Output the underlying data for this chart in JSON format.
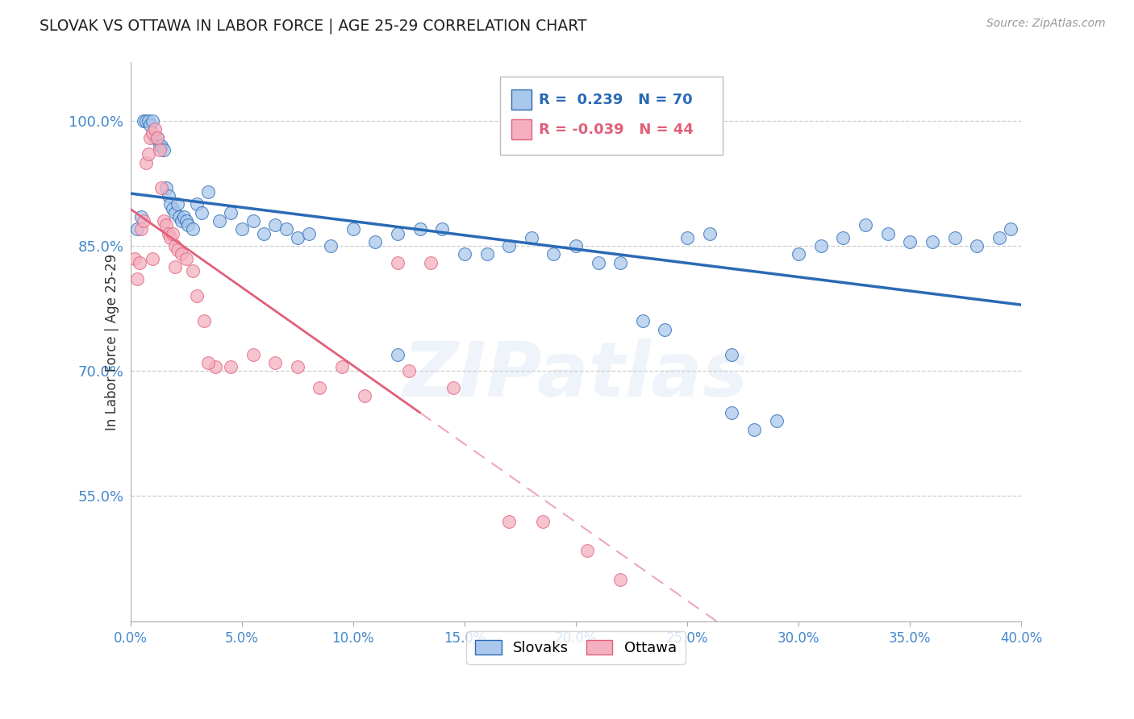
{
  "title": "SLOVAK VS OTTAWA IN LABOR FORCE | AGE 25-29 CORRELATION CHART",
  "source": "Source: ZipAtlas.com",
  "xlabel_ticks": [
    "0.0%",
    "5.0%",
    "10.0%",
    "15.0%",
    "20.0%",
    "25.0%",
    "30.0%",
    "35.0%",
    "40.0%"
  ],
  "xlabel_vals": [
    0.0,
    5.0,
    10.0,
    15.0,
    20.0,
    25.0,
    30.0,
    35.0,
    40.0
  ],
  "ylabel_ticks": [
    "55.0%",
    "70.0%",
    "85.0%",
    "100.0%"
  ],
  "ylabel_vals": [
    55.0,
    70.0,
    85.0,
    100.0
  ],
  "ylabel_label": "In Labor Force | Age 25-29",
  "xlim": [
    0.0,
    40.0
  ],
  "ylim": [
    40.0,
    107.0
  ],
  "blue_R": 0.239,
  "blue_N": 70,
  "pink_R": -0.039,
  "pink_N": 44,
  "blue_color": "#aac8ec",
  "pink_color": "#f4b0c0",
  "blue_line_color": "#2a6ab5",
  "pink_line_color": "#e0607a",
  "title_color": "#222222",
  "axis_label_color": "#333333",
  "tick_color": "#4488cc",
  "grid_color": "#c8c8c8",
  "source_color": "#999999",
  "legend_label_blue": "Slovaks",
  "legend_label_pink": "Ottawa",
  "blue_x": [
    0.3,
    0.5,
    0.6,
    0.7,
    0.8,
    0.9,
    1.0,
    1.1,
    1.2,
    1.3,
    1.4,
    1.5,
    1.6,
    1.7,
    1.8,
    1.9,
    2.0,
    2.1,
    2.2,
    2.3,
    2.4,
    2.5,
    2.6,
    2.8,
    3.0,
    3.2,
    3.5,
    4.0,
    4.5,
    5.0,
    5.5,
    6.0,
    6.5,
    7.0,
    7.5,
    8.0,
    9.0,
    10.0,
    11.0,
    12.0,
    13.0,
    14.0,
    15.0,
    16.0,
    17.0,
    18.0,
    19.0,
    20.0,
    21.0,
    22.0,
    23.0,
    24.0,
    25.0,
    26.0,
    27.0,
    28.0,
    29.0,
    30.0,
    31.0,
    32.0,
    33.0,
    34.0,
    35.0,
    36.0,
    37.0,
    38.0,
    39.0,
    39.5,
    12.0,
    27.0
  ],
  "blue_y": [
    87.0,
    88.5,
    100.0,
    100.0,
    100.0,
    99.5,
    100.0,
    98.0,
    98.0,
    97.0,
    97.0,
    96.5,
    92.0,
    91.0,
    90.0,
    89.5,
    89.0,
    90.0,
    88.5,
    88.0,
    88.5,
    88.0,
    87.5,
    87.0,
    90.0,
    89.0,
    91.5,
    88.0,
    89.0,
    87.0,
    88.0,
    86.5,
    87.5,
    87.0,
    86.0,
    86.5,
    85.0,
    87.0,
    85.5,
    86.5,
    87.0,
    87.0,
    84.0,
    84.0,
    85.0,
    86.0,
    84.0,
    85.0,
    83.0,
    83.0,
    76.0,
    75.0,
    86.0,
    86.5,
    65.0,
    63.0,
    64.0,
    84.0,
    85.0,
    86.0,
    87.5,
    86.5,
    85.5,
    85.5,
    86.0,
    85.0,
    86.0,
    87.0,
    72.0,
    72.0
  ],
  "pink_x": [
    0.2,
    0.4,
    0.5,
    0.6,
    0.7,
    0.8,
    0.9,
    1.0,
    1.1,
    1.2,
    1.3,
    1.4,
    1.5,
    1.6,
    1.7,
    1.8,
    1.9,
    2.0,
    2.1,
    2.3,
    2.5,
    2.8,
    3.0,
    3.3,
    3.8,
    4.5,
    5.5,
    6.5,
    7.5,
    8.5,
    9.5,
    10.5,
    12.5,
    14.5,
    17.0,
    18.5,
    20.5,
    22.0,
    0.3,
    1.0,
    2.0,
    3.5,
    12.0,
    13.5
  ],
  "pink_y": [
    83.5,
    83.0,
    87.0,
    88.0,
    95.0,
    96.0,
    98.0,
    98.5,
    99.0,
    98.0,
    96.5,
    92.0,
    88.0,
    87.5,
    86.5,
    86.0,
    86.5,
    85.0,
    84.5,
    84.0,
    83.5,
    82.0,
    79.0,
    76.0,
    70.5,
    70.5,
    72.0,
    71.0,
    70.5,
    68.0,
    70.5,
    67.0,
    70.0,
    68.0,
    52.0,
    52.0,
    48.5,
    45.0,
    81.0,
    83.5,
    82.5,
    71.0,
    83.0,
    83.0
  ],
  "pink_solid_xmax": 13.0,
  "watermark_text": "ZIPatlas",
  "background_color": "#ffffff"
}
